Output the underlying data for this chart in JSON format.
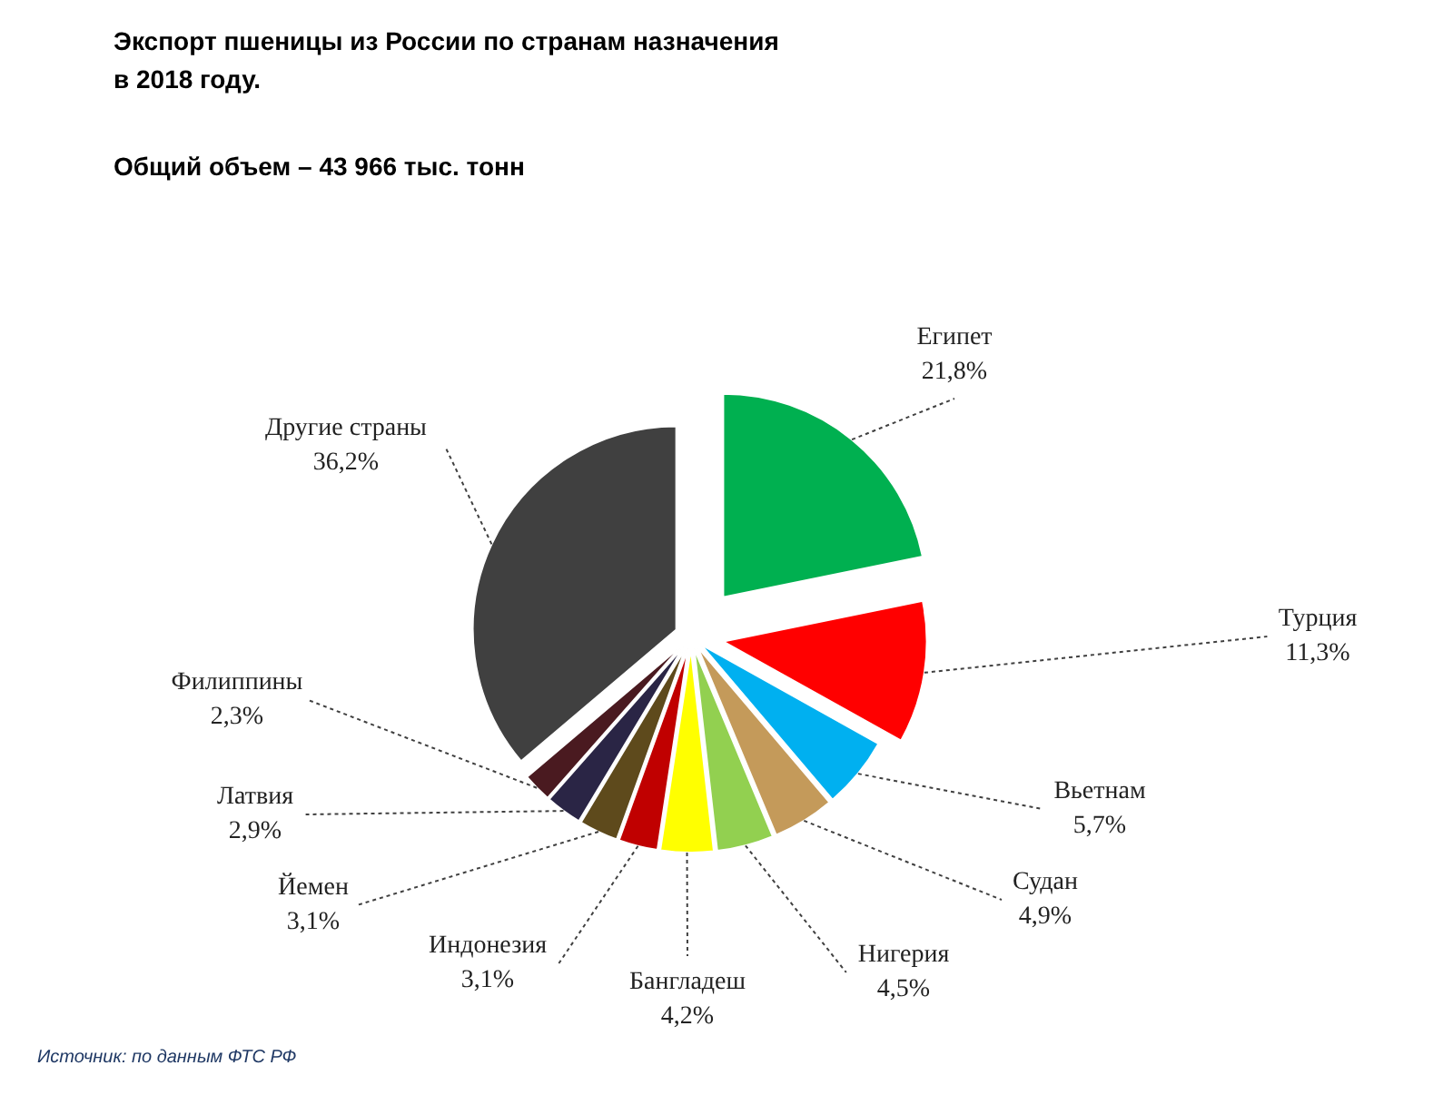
{
  "chart_data": {
    "type": "pie",
    "title": "Экспорт пшеницы из России по странам назначения\nв 2018 году.",
    "subtitle": "Общий объем – 43 966 тыс. тонн",
    "categories": [
      "Египет",
      "Турция",
      "Вьетнам",
      "Судан",
      "Нигерия",
      "Бангладеш",
      "Индонезия",
      "Йемен",
      "Латвия",
      "Филиппины",
      "Другие страны"
    ],
    "values": [
      21.8,
      11.3,
      5.7,
      4.9,
      4.5,
      4.2,
      3.1,
      3.1,
      2.9,
      2.3,
      36.2
    ],
    "value_labels": [
      "21,8%",
      "11,3%",
      "5,7%",
      "4,9%",
      "4,5%",
      "4,2%",
      "3,1%",
      "3,1%",
      "2,9%",
      "2,3%",
      "36,2%"
    ],
    "colors": [
      "#00b050",
      "#ff0000",
      "#00b0f0",
      "#c49a5a",
      "#92d050",
      "#ffff00",
      "#c00000",
      "#5e4a1c",
      "#2a2545",
      "#4a1a20",
      "#404040"
    ],
    "annotations": [
      "Источник: по данным ФТС РФ"
    ]
  }
}
